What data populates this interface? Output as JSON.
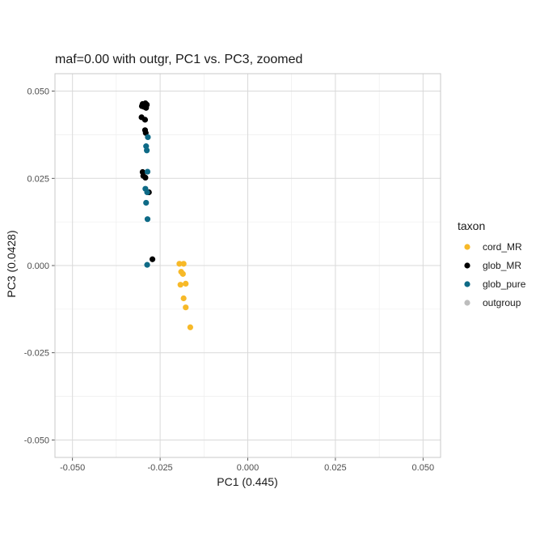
{
  "chart_data": {
    "type": "scatter",
    "title": "maf=0.00 with outgr, PC1 vs. PC3, zoomed",
    "xlabel": "PC1 (0.445)",
    "ylabel": "PC3 (0.0428)",
    "xlim": [
      -0.055,
      0.055
    ],
    "ylim": [
      -0.055,
      0.055
    ],
    "x_ticks": [
      -0.05,
      -0.025,
      0.0,
      0.025,
      0.05
    ],
    "x_tick_labels": [
      "-0.050",
      "-0.025",
      "0.000",
      "0.025",
      "0.050"
    ],
    "y_ticks": [
      -0.05,
      -0.025,
      0.0,
      0.025,
      0.05
    ],
    "y_tick_labels": [
      "-0.050",
      "-0.025",
      "0.000",
      "0.025",
      "0.050"
    ],
    "grid": true,
    "legend": {
      "title": "taxon",
      "position": "right"
    },
    "series": [
      {
        "name": "cord_MR",
        "color": "#f7b928",
        "points": [
          {
            "x": -0.0195,
            "y": 0.0005
          },
          {
            "x": -0.0183,
            "y": 0.0005
          },
          {
            "x": -0.019,
            "y": -0.0018
          },
          {
            "x": -0.0185,
            "y": -0.0024
          },
          {
            "x": -0.0192,
            "y": -0.0055
          },
          {
            "x": -0.0177,
            "y": -0.0052
          },
          {
            "x": -0.0183,
            "y": -0.0094
          },
          {
            "x": -0.0177,
            "y": -0.012
          },
          {
            "x": -0.0164,
            "y": -0.0177
          }
        ]
      },
      {
        "name": "glob_MR",
        "color": "#000000",
        "points": [
          {
            "x": -0.03,
            "y": 0.0463
          },
          {
            "x": -0.0292,
            "y": 0.0465
          },
          {
            "x": -0.0288,
            "y": 0.0461
          },
          {
            "x": -0.0296,
            "y": 0.0455
          },
          {
            "x": -0.0302,
            "y": 0.0457
          },
          {
            "x": -0.029,
            "y": 0.0452
          },
          {
            "x": -0.0303,
            "y": 0.0425
          },
          {
            "x": -0.0293,
            "y": 0.0418
          },
          {
            "x": -0.0293,
            "y": 0.0388
          },
          {
            "x": -0.0291,
            "y": 0.038
          },
          {
            "x": -0.03,
            "y": 0.0268
          },
          {
            "x": -0.0298,
            "y": 0.0257
          },
          {
            "x": -0.0292,
            "y": 0.0252
          },
          {
            "x": -0.0282,
            "y": 0.021
          },
          {
            "x": -0.0272,
            "y": 0.0018
          }
        ]
      },
      {
        "name": "glob_pure",
        "color": "#0e6a86",
        "points": [
          {
            "x": -0.0285,
            "y": 0.0368
          },
          {
            "x": -0.029,
            "y": 0.0342
          },
          {
            "x": -0.0288,
            "y": 0.033
          },
          {
            "x": -0.0286,
            "y": 0.0269
          },
          {
            "x": -0.0292,
            "y": 0.022
          },
          {
            "x": -0.0287,
            "y": 0.021
          },
          {
            "x": -0.029,
            "y": 0.018
          },
          {
            "x": -0.0286,
            "y": 0.0133
          },
          {
            "x": -0.0287,
            "y": 0.0002
          }
        ]
      },
      {
        "name": "outgroup",
        "color": "#bdbdbd",
        "points": []
      }
    ]
  }
}
